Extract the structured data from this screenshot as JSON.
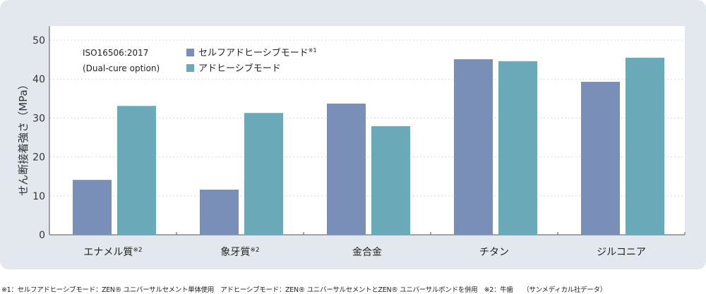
{
  "chart_data": {
    "type": "bar",
    "title": "",
    "ylabel": "せん断接着強さ（MPa）",
    "xlabel": "",
    "ylim": [
      0,
      50
    ],
    "yticks": [
      0,
      10,
      20,
      30,
      40,
      50
    ],
    "grid": true,
    "categories": [
      "エナメル質※2",
      "象牙質※2",
      "金合金",
      "チタン",
      "ジルコニア"
    ],
    "series": [
      {
        "name": "セルフアドヒーシブモード※1",
        "color": "#7a8fb8",
        "values": [
          14.1,
          11.6,
          33.7,
          45.1,
          39.3
        ]
      },
      {
        "name": "アドヒーシブモード",
        "color": "#6aaab8",
        "values": [
          33.1,
          31.3,
          27.9,
          44.6,
          45.5
        ]
      }
    ],
    "legend_placement": "top-left",
    "annotation": [
      "ISO16506:2017",
      "(Dual-cure option)"
    ]
  },
  "footnote": "※1：セルフアドヒーシブモード：ZEN® ユニバーサルセメント単体使用　アドヒーシブモード：ZEN® ユニバーサルセメントとZEN® ユニバーサルボンドを併用　※2：牛歯　　（サンメディカル社データ）"
}
